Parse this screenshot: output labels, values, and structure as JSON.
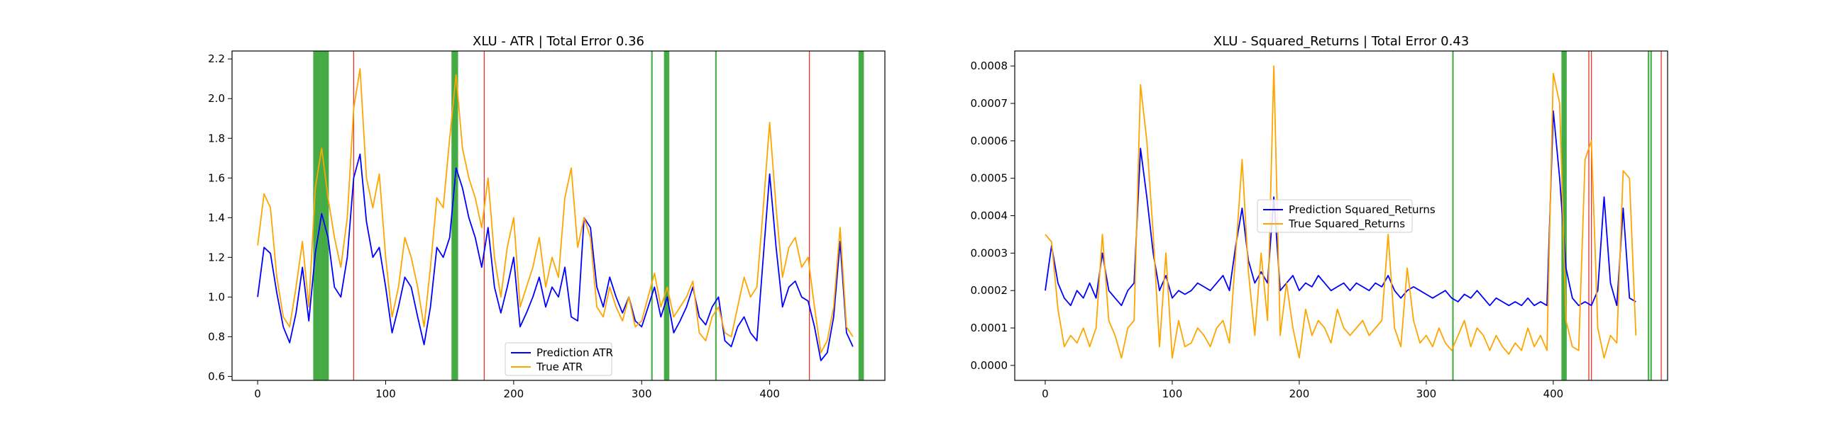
{
  "chart_data": [
    {
      "type": "line",
      "title": "XLU - ATR | Total Error 0.36",
      "xlabel": "",
      "ylabel": "",
      "xlim": [
        -20,
        490
      ],
      "ylim": [
        0.58,
        2.24
      ],
      "xticks": [
        0,
        100,
        200,
        300,
        400
      ],
      "yticks": [
        0.6,
        0.8,
        1.0,
        1.2,
        1.4,
        1.6,
        1.8,
        2.0,
        2.2
      ],
      "ytick_labels": [
        "0.6",
        "0.8",
        "1.0",
        "1.2",
        "1.4",
        "1.6",
        "1.8",
        "2.0",
        "2.2"
      ],
      "legend_position": "lower-center",
      "grid": false,
      "series": [
        {
          "name": "Prediction ATR",
          "color": "#0000ff",
          "x": [
            0,
            5,
            10,
            15,
            20,
            25,
            30,
            35,
            40,
            45,
            50,
            55,
            60,
            65,
            70,
            75,
            80,
            85,
            90,
            95,
            100,
            105,
            110,
            115,
            120,
            125,
            130,
            135,
            140,
            145,
            150,
            155,
            160,
            165,
            170,
            175,
            180,
            185,
            190,
            195,
            200,
            205,
            210,
            215,
            220,
            225,
            230,
            235,
            240,
            245,
            250,
            255,
            260,
            265,
            270,
            275,
            280,
            285,
            290,
            295,
            300,
            305,
            310,
            315,
            320,
            325,
            330,
            335,
            340,
            345,
            350,
            355,
            360,
            365,
            370,
            375,
            380,
            385,
            390,
            395,
            400,
            405,
            410,
            415,
            420,
            425,
            430,
            435,
            440,
            445,
            450,
            455,
            460,
            465
          ],
          "values": [
            1.0,
            1.25,
            1.22,
            1.02,
            0.85,
            0.77,
            0.92,
            1.15,
            0.88,
            1.22,
            1.42,
            1.3,
            1.05,
            1.0,
            1.2,
            1.6,
            1.72,
            1.38,
            1.2,
            1.25,
            1.05,
            0.82,
            0.95,
            1.1,
            1.05,
            0.9,
            0.76,
            0.95,
            1.25,
            1.2,
            1.3,
            1.65,
            1.55,
            1.4,
            1.3,
            1.15,
            1.35,
            1.05,
            0.92,
            1.05,
            1.2,
            0.85,
            0.92,
            1.0,
            1.1,
            0.95,
            1.05,
            1.0,
            1.15,
            0.9,
            0.88,
            1.4,
            1.35,
            1.05,
            0.95,
            1.1,
            1.0,
            0.92,
            1.0,
            0.88,
            0.85,
            0.95,
            1.05,
            0.9,
            1.0,
            0.82,
            0.88,
            0.95,
            1.05,
            0.9,
            0.86,
            0.95,
            1.0,
            0.78,
            0.75,
            0.85,
            0.9,
            0.82,
            0.78,
            1.2,
            1.62,
            1.25,
            0.95,
            1.05,
            1.08,
            1.0,
            0.98,
            0.85,
            0.68,
            0.72,
            0.9,
            1.28,
            0.82,
            0.75
          ]
        },
        {
          "name": "True ATR",
          "color": "#ffa500",
          "x": [
            0,
            5,
            10,
            15,
            20,
            25,
            30,
            35,
            40,
            45,
            50,
            55,
            60,
            65,
            70,
            75,
            80,
            85,
            90,
            95,
            100,
            105,
            110,
            115,
            120,
            125,
            130,
            135,
            140,
            145,
            150,
            155,
            160,
            165,
            170,
            175,
            180,
            185,
            190,
            195,
            200,
            205,
            210,
            215,
            220,
            225,
            230,
            235,
            240,
            245,
            250,
            255,
            260,
            265,
            270,
            275,
            280,
            285,
            290,
            295,
            300,
            305,
            310,
            315,
            320,
            325,
            330,
            335,
            340,
            345,
            350,
            355,
            360,
            365,
            370,
            375,
            380,
            385,
            390,
            395,
            400,
            405,
            410,
            415,
            420,
            425,
            430,
            435,
            440,
            445,
            450,
            455,
            460,
            465
          ],
          "values": [
            1.26,
            1.52,
            1.45,
            1.1,
            0.9,
            0.85,
            1.05,
            1.28,
            0.95,
            1.55,
            1.75,
            1.5,
            1.3,
            1.15,
            1.4,
            1.95,
            2.15,
            1.6,
            1.45,
            1.62,
            1.2,
            0.9,
            1.05,
            1.3,
            1.2,
            1.05,
            0.85,
            1.15,
            1.5,
            1.45,
            1.8,
            2.12,
            1.75,
            1.6,
            1.5,
            1.35,
            1.6,
            1.2,
            1.0,
            1.25,
            1.4,
            0.95,
            1.05,
            1.15,
            1.3,
            1.05,
            1.2,
            1.1,
            1.5,
            1.65,
            1.25,
            1.4,
            1.3,
            0.95,
            0.9,
            1.05,
            0.95,
            0.88,
            1.0,
            0.85,
            0.88,
            1.0,
            1.12,
            0.95,
            1.05,
            0.9,
            0.95,
            1.0,
            1.08,
            0.82,
            0.78,
            0.9,
            0.95,
            0.82,
            0.8,
            0.95,
            1.1,
            1.0,
            1.05,
            1.45,
            1.88,
            1.45,
            1.1,
            1.25,
            1.3,
            1.15,
            1.2,
            0.95,
            0.72,
            0.78,
            0.95,
            1.35,
            0.85,
            0.8
          ]
        }
      ],
      "vlines": {
        "green": [
          44,
          45,
          46,
          47,
          48,
          49,
          50,
          51,
          52,
          53,
          54,
          55,
          152,
          153,
          154,
          155,
          156,
          308,
          318,
          319,
          320,
          321,
          358,
          470,
          471,
          472,
          473
        ],
        "red": [
          75,
          177,
          431
        ]
      }
    },
    {
      "type": "line",
      "title": "XLU - Squared_Returns | Total Error 0.43",
      "xlabel": "",
      "ylabel": "",
      "xlim": [
        -24,
        490
      ],
      "ylim": [
        -4e-05,
        0.00084
      ],
      "xticks": [
        0,
        100,
        200,
        300,
        400
      ],
      "yticks": [
        0.0,
        0.0001,
        0.0002,
        0.0003,
        0.0004,
        0.0005,
        0.0006,
        0.0007,
        0.0008
      ],
      "ytick_labels": [
        "0.0000",
        "0.0001",
        "0.0002",
        "0.0003",
        "0.0004",
        "0.0005",
        "0.0006",
        "0.0007",
        "0.0008"
      ],
      "legend_position": "center",
      "grid": false,
      "series": [
        {
          "name": "Prediction Squared_Returns",
          "color": "#0000ff",
          "x": [
            0,
            5,
            10,
            15,
            20,
            25,
            30,
            35,
            40,
            45,
            50,
            55,
            60,
            65,
            70,
            75,
            80,
            85,
            90,
            95,
            100,
            105,
            110,
            115,
            120,
            125,
            130,
            135,
            140,
            145,
            150,
            155,
            160,
            165,
            170,
            175,
            180,
            185,
            190,
            195,
            200,
            205,
            210,
            215,
            220,
            225,
            230,
            235,
            240,
            245,
            250,
            255,
            260,
            265,
            270,
            275,
            280,
            285,
            290,
            295,
            300,
            305,
            310,
            315,
            320,
            325,
            330,
            335,
            340,
            345,
            350,
            355,
            360,
            365,
            370,
            375,
            380,
            385,
            390,
            395,
            400,
            405,
            410,
            415,
            420,
            425,
            430,
            435,
            440,
            445,
            450,
            455,
            460,
            465
          ],
          "values": [
            0.0002,
            0.00032,
            0.00022,
            0.00018,
            0.00016,
            0.0002,
            0.00018,
            0.00022,
            0.00018,
            0.0003,
            0.0002,
            0.00018,
            0.00016,
            0.0002,
            0.00022,
            0.00058,
            0.00045,
            0.0003,
            0.0002,
            0.00024,
            0.00018,
            0.0002,
            0.00019,
            0.0002,
            0.00022,
            0.00021,
            0.0002,
            0.00022,
            0.00024,
            0.0002,
            0.00032,
            0.00042,
            0.00028,
            0.00022,
            0.00025,
            0.00022,
            0.00045,
            0.0002,
            0.00022,
            0.00024,
            0.0002,
            0.00022,
            0.00021,
            0.00024,
            0.00022,
            0.0002,
            0.00021,
            0.00022,
            0.0002,
            0.00022,
            0.00021,
            0.0002,
            0.00022,
            0.00021,
            0.00024,
            0.0002,
            0.00018,
            0.0002,
            0.00021,
            0.0002,
            0.00019,
            0.00018,
            0.00019,
            0.0002,
            0.00018,
            0.00017,
            0.00019,
            0.00018,
            0.0002,
            0.00018,
            0.00016,
            0.00018,
            0.00017,
            0.00016,
            0.00017,
            0.00016,
            0.00018,
            0.00016,
            0.00017,
            0.00016,
            0.00068,
            0.0005,
            0.00026,
            0.00018,
            0.00016,
            0.00017,
            0.00016,
            0.0002,
            0.00045,
            0.00022,
            0.00016,
            0.00042,
            0.00018,
            0.00017
          ]
        },
        {
          "name": "True Squared_Returns",
          "color": "#ffa500",
          "x": [
            0,
            5,
            10,
            15,
            20,
            25,
            30,
            35,
            40,
            45,
            50,
            55,
            60,
            65,
            70,
            75,
            80,
            85,
            90,
            95,
            100,
            105,
            110,
            115,
            120,
            125,
            130,
            135,
            140,
            145,
            150,
            155,
            160,
            165,
            170,
            175,
            180,
            185,
            190,
            195,
            200,
            205,
            210,
            215,
            220,
            225,
            230,
            235,
            240,
            245,
            250,
            255,
            260,
            265,
            270,
            275,
            280,
            285,
            290,
            295,
            300,
            305,
            310,
            315,
            320,
            325,
            330,
            335,
            340,
            345,
            350,
            355,
            360,
            365,
            370,
            375,
            380,
            385,
            390,
            395,
            400,
            405,
            410,
            415,
            420,
            425,
            430,
            435,
            440,
            445,
            450,
            455,
            460,
            465
          ],
          "values": [
            0.00035,
            0.00033,
            0.00015,
            5e-05,
            8e-05,
            6e-05,
            0.0001,
            5e-05,
            0.0001,
            0.00035,
            0.00012,
            8e-05,
            2e-05,
            0.0001,
            0.00012,
            0.00075,
            0.0006,
            0.00035,
            5e-05,
            0.0003,
            2e-05,
            0.00012,
            5e-05,
            6e-05,
            0.0001,
            8e-05,
            5e-05,
            0.0001,
            0.00012,
            6e-05,
            0.0003,
            0.00055,
            0.00025,
            8e-05,
            0.0003,
            0.00012,
            0.0008,
            8e-05,
            0.00022,
            0.0001,
            2e-05,
            0.00015,
            8e-05,
            0.00012,
            0.0001,
            6e-05,
            0.00015,
            0.0001,
            8e-05,
            0.0001,
            0.00012,
            8e-05,
            0.0001,
            0.00012,
            0.00035,
            0.0001,
            5e-05,
            0.00026,
            0.00012,
            6e-05,
            8e-05,
            5e-05,
            0.0001,
            6e-05,
            4e-05,
            8e-05,
            0.00012,
            5e-05,
            0.0001,
            8e-05,
            4e-05,
            8e-05,
            5e-05,
            3e-05,
            6e-05,
            4e-05,
            0.0001,
            5e-05,
            8e-05,
            4e-05,
            0.00078,
            0.0007,
            0.00012,
            5e-05,
            4e-05,
            0.00055,
            0.0006,
            0.0001,
            2e-05,
            8e-05,
            6e-05,
            0.00052,
            0.0005,
            8e-05
          ]
        }
      ],
      "vlines": {
        "green": [
          321,
          407,
          408,
          409,
          410,
          475,
          477
        ],
        "red": [
          428,
          430,
          485
        ]
      }
    }
  ]
}
